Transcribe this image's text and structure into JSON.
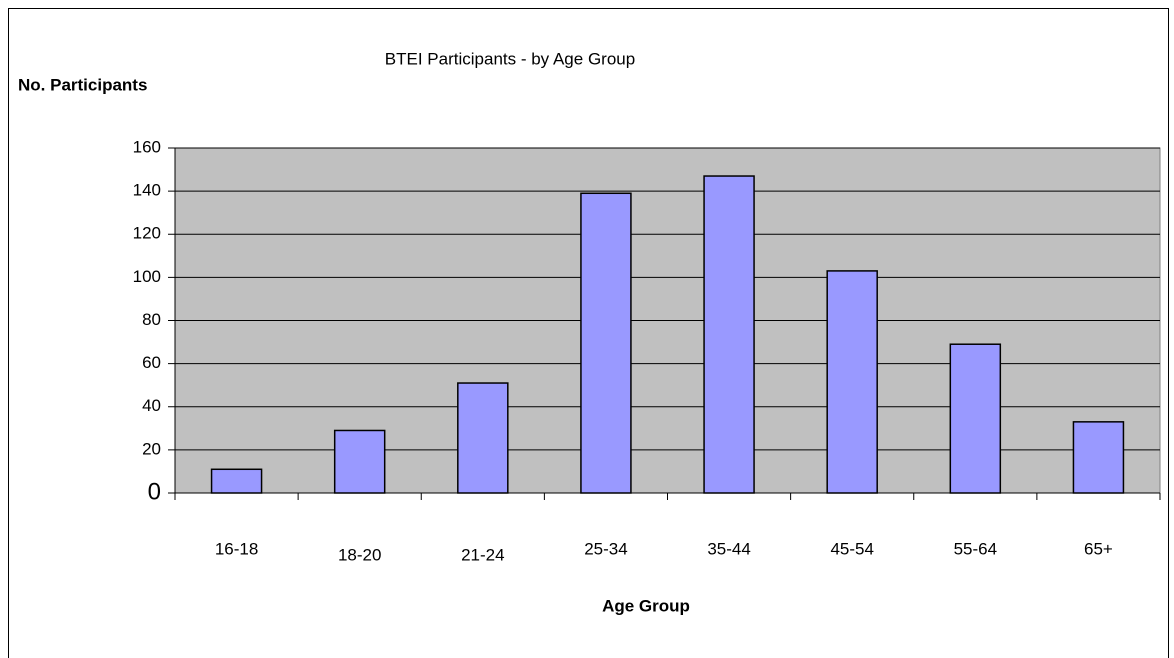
{
  "chart_data": {
    "type": "bar",
    "title": "BTEI Participants - by Age Group",
    "y_label": "No. Participants",
    "x_label": "Age Group",
    "categories": [
      "16-18",
      "18-20",
      "21-24",
      "25-34",
      "35-44",
      "45-54",
      "55-64",
      "65+"
    ],
    "values": [
      11,
      29,
      51,
      139,
      147,
      103,
      69,
      33
    ],
    "color": "#9999ff",
    "ylim": [
      0,
      160
    ],
    "yticks": [
      0,
      20,
      40,
      60,
      80,
      100,
      120,
      140,
      160
    ],
    "grid": true
  }
}
